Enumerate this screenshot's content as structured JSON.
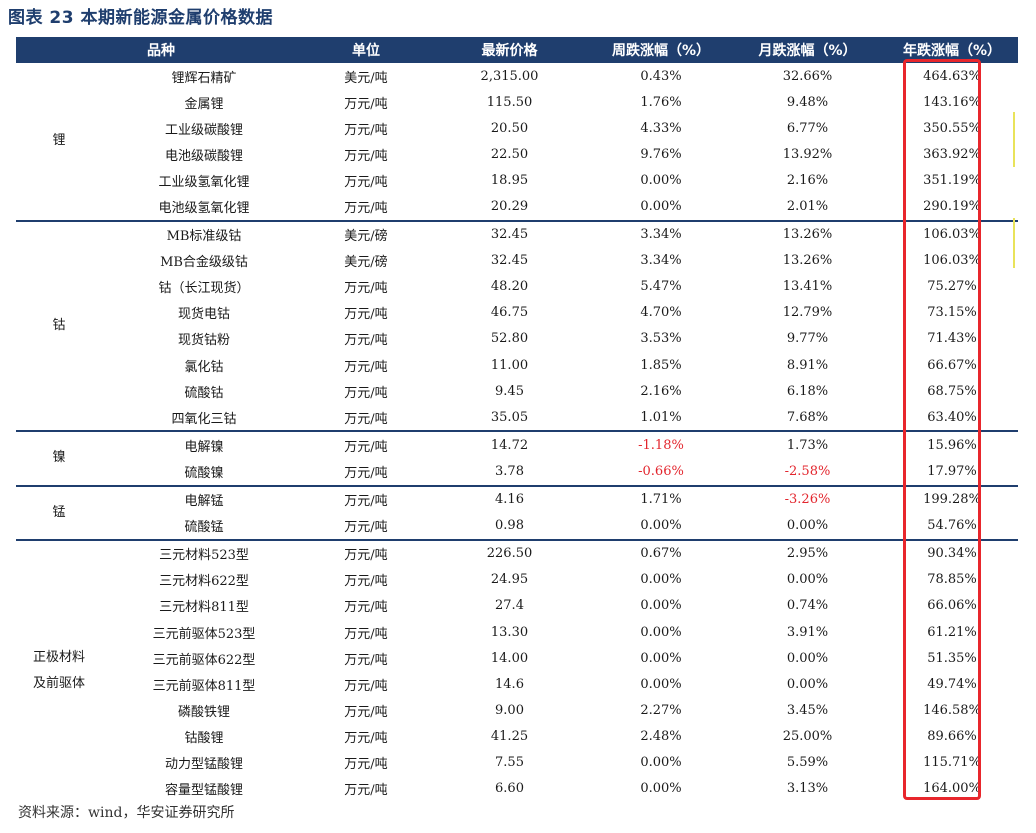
{
  "title": "图表 23 本期新能源金属价格数据",
  "headers": [
    "品种",
    "单位",
    "最新价格",
    "周跌涨幅（%）",
    "月跌涨幅（%）",
    "年跌涨幅（%）"
  ],
  "groups": [
    {
      "name": "锂",
      "rows": [
        {
          "item": "锂辉石精矿",
          "unit": "美元/吨",
          "price": "2,315.00",
          "week": "0.43%",
          "month": "32.66%",
          "year": "464.63%"
        },
        {
          "item": "金属锂",
          "unit": "万元/吨",
          "price": "115.50",
          "week": "1.76%",
          "month": "9.48%",
          "year": "143.16%"
        },
        {
          "item": "工业级碳酸锂",
          "unit": "万元/吨",
          "price": "20.50",
          "week": "4.33%",
          "month": "6.77%",
          "year": "350.55%"
        },
        {
          "item": "电池级碳酸锂",
          "unit": "万元/吨",
          "price": "22.50",
          "week": "9.76%",
          "month": "13.92%",
          "year": "363.92%"
        },
        {
          "item": "工业级氢氧化锂",
          "unit": "万元/吨",
          "price": "18.95",
          "week": "0.00%",
          "month": "2.16%",
          "year": "351.19%"
        },
        {
          "item": "电池级氢氧化锂",
          "unit": "万元/吨",
          "price": "20.29",
          "week": "0.00%",
          "month": "2.01%",
          "year": "290.19%"
        }
      ]
    },
    {
      "name": "钴",
      "rows": [
        {
          "item": "MB标准级钴",
          "unit": "美元/磅",
          "price": "32.45",
          "week": "3.34%",
          "month": "13.26%",
          "year": "106.03%"
        },
        {
          "item": "MB合金级级钴",
          "unit": "美元/磅",
          "price": "32.45",
          "week": "3.34%",
          "month": "13.26%",
          "year": "106.03%"
        },
        {
          "item": "钴（长江现货）",
          "unit": "万元/吨",
          "price": "48.20",
          "week": "5.47%",
          "month": "13.41%",
          "year": "75.27%"
        },
        {
          "item": "现货电钴",
          "unit": "万元/吨",
          "price": "46.75",
          "week": "4.70%",
          "month": "12.79%",
          "year": "73.15%"
        },
        {
          "item": "现货钴粉",
          "unit": "万元/吨",
          "price": "52.80",
          "week": "3.53%",
          "month": "9.77%",
          "year": "71.43%"
        },
        {
          "item": "氯化钴",
          "unit": "万元/吨",
          "price": "11.00",
          "week": "1.85%",
          "month": "8.91%",
          "year": "66.67%"
        },
        {
          "item": "硫酸钴",
          "unit": "万元/吨",
          "price": "9.45",
          "week": "2.16%",
          "month": "6.18%",
          "year": "68.75%"
        },
        {
          "item": "四氧化三钴",
          "unit": "万元/吨",
          "price": "35.05",
          "week": "1.01%",
          "month": "7.68%",
          "year": "63.40%"
        }
      ]
    },
    {
      "name": "镍",
      "rows": [
        {
          "item": "电解镍",
          "unit": "万元/吨",
          "price": "14.72",
          "week": "-1.18%",
          "month": "1.73%",
          "year": "15.96%"
        },
        {
          "item": "硫酸镍",
          "unit": "万元/吨",
          "price": "3.78",
          "week": "-0.66%",
          "month": "-2.58%",
          "year": "17.97%"
        }
      ]
    },
    {
      "name": "锰",
      "rows": [
        {
          "item": "电解锰",
          "unit": "万元/吨",
          "price": "4.16",
          "week": "1.71%",
          "month": "-3.26%",
          "year": "199.28%"
        },
        {
          "item": "硫酸锰",
          "unit": "万元/吨",
          "price": "0.98",
          "week": "0.00%",
          "month": "0.00%",
          "year": "54.76%"
        }
      ]
    },
    {
      "name": "正极材料\n及前驱体",
      "rows": [
        {
          "item": "三元材料523型",
          "unit": "万元/吨",
          "price": "226.50",
          "week": "0.67%",
          "month": "2.95%",
          "year": "90.34%"
        },
        {
          "item": "三元材料622型",
          "unit": "万元/吨",
          "price": "24.95",
          "week": "0.00%",
          "month": "0.00%",
          "year": "78.85%"
        },
        {
          "item": "三元材料811型",
          "unit": "万元/吨",
          "price": "27.4",
          "week": "0.00%",
          "month": "0.74%",
          "year": "66.06%"
        },
        {
          "item": "三元前驱体523型",
          "unit": "万元/吨",
          "price": "13.30",
          "week": "0.00%",
          "month": "3.91%",
          "year": "61.21%"
        },
        {
          "item": "三元前驱体622型",
          "unit": "万元/吨",
          "price": "14.00",
          "week": "0.00%",
          "month": "0.00%",
          "year": "51.35%"
        },
        {
          "item": "三元前驱体811型",
          "unit": "万元/吨",
          "price": "14.6",
          "week": "0.00%",
          "month": "0.00%",
          "year": "49.74%"
        },
        {
          "item": "磷酸铁锂",
          "unit": "万元/吨",
          "price": "9.00",
          "week": "2.27%",
          "month": "3.45%",
          "year": "146.58%"
        },
        {
          "item": "钴酸锂",
          "unit": "万元/吨",
          "price": "41.25",
          "week": "2.48%",
          "month": "25.00%",
          "year": "89.66%"
        },
        {
          "item": "动力型锰酸锂",
          "unit": "万元/吨",
          "price": "7.55",
          "week": "0.00%",
          "month": "5.59%",
          "year": "115.71%"
        },
        {
          "item": "容量型锰酸锂",
          "unit": "万元/吨",
          "price": "6.60",
          "week": "0.00%",
          "month": "3.13%",
          "year": "164.00%"
        }
      ]
    }
  ],
  "source": "资料来源：wind，华安证券研究所",
  "colors": {
    "header_bg": "#1f3e6e",
    "negative": "#e3262e",
    "highlight": "#e8262c",
    "marker": "#e9e35a"
  }
}
